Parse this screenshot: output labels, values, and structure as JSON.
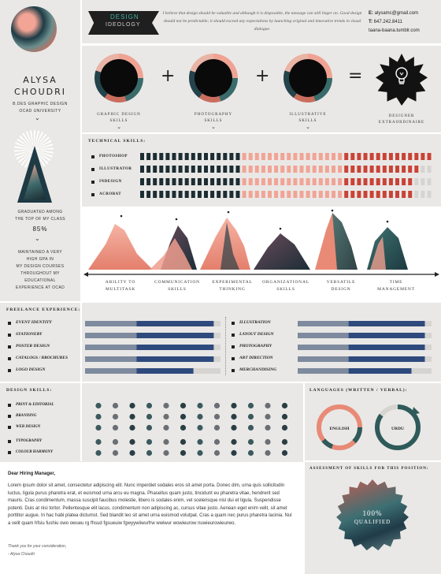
{
  "profile": {
    "first_name": "ALYSA",
    "last_name": "CHOUDRI",
    "degree_line1": "B.DES GRAPHIC DESIGN",
    "degree_line2": "OCAD UNIVERSITY",
    "graduated_line1": "GRADUATED AMONG",
    "graduated_line2": "THE TOP OF MY CLASS",
    "percent": "85%",
    "gpa_lines": [
      "MAINTAINED A VERY",
      "HIGH GPA IN",
      "MY DESIGN COURSES",
      "THROUGHOUT MY",
      "EDUCATIONAL",
      "EXPERIENCE AT OCAD"
    ]
  },
  "header": {
    "banner_line1": "DESIGN",
    "banner_line2": "IDEOLOGY",
    "quote": "I believe that design should be valuable and although it is disposable, the message can still linger on. Good design should not be predictable; it should exceed any expectations by launching original and innovative trends in visual dialogue.",
    "email_label": "E:",
    "email": "alysamc@gmail.com",
    "phone_label": "T:",
    "phone": "647.242.8411",
    "website": "taana-baana.tumblr.com"
  },
  "equation": {
    "items": [
      {
        "label1": "GRAPHIC DESIGN",
        "label2": "SKILLS"
      },
      {
        "label1": "PHOTOGRAPHY",
        "label2": "SKILLS"
      },
      {
        "label1": "ILLUSTRATIVE",
        "label2": "SKILLS"
      },
      {
        "label1": "DESIGNER",
        "label2": "EXTRAORDINAIRE"
      }
    ],
    "plus": "+",
    "equals": "="
  },
  "technical": {
    "title": "TECHNICAL SKILLS:",
    "skills": [
      {
        "name": "PHOTOSHOP",
        "level": 1.0
      },
      {
        "name": "ILLUSTRATOR",
        "level": 0.95
      },
      {
        "name": "INDESIGN",
        "level": 0.93
      },
      {
        "name": "ACROBAT",
        "level": 0.93
      }
    ],
    "colors": {
      "dark": "#1c2d33",
      "light": "#f1a495",
      "red": "#c94336",
      "empty": "#d6d4d1"
    }
  },
  "personal_skills": {
    "labels": [
      {
        "l1": "ABILITY TO",
        "l2": "MULTITASK"
      },
      {
        "l1": "COMMUNICATION",
        "l2": "SKILLS"
      },
      {
        "l1": "EXPERIMENTAL",
        "l2": "THINKING"
      },
      {
        "l1": "ORGANIZATIONAL",
        "l2": "SKILLS"
      },
      {
        "l1": "VERSATILE",
        "l2": "DESIGN"
      },
      {
        "l1": "TIME",
        "l2": "MANAGEMENT"
      }
    ]
  },
  "freelance": {
    "title": "FREELANCE EXPERIENCE:",
    "left": [
      {
        "name": "EVENT IDENTITY",
        "level": 0.95
      },
      {
        "name": "STATIONERY",
        "level": 0.95
      },
      {
        "name": "POSTER DESIGN",
        "level": 0.95
      },
      {
        "name": "CATALOGS / BROCHURES",
        "level": 0.95
      },
      {
        "name": "LOGO DESIGN",
        "level": 0.8
      }
    ],
    "right": [
      {
        "name": "ILLUSTRATION",
        "level": 0.95
      },
      {
        "name": "LAYOUT DESIGN",
        "level": 0.95
      },
      {
        "name": "PHOTOGRAPHY",
        "level": 0.95
      },
      {
        "name": "ART DIRECTION",
        "level": 0.95
      },
      {
        "name": "MERCHANDISING",
        "level": 0.85
      }
    ],
    "colors": {
      "texture": "#7e8a9e",
      "blue": "#2e4a7d",
      "empty": "#d6d4d1"
    }
  },
  "design_skills": {
    "title": "DESIGN SKILLS:",
    "skills": [
      {
        "name": "PRINT & EDITORIAL",
        "dots": 12
      },
      {
        "name": "BRANDING",
        "dots": 12
      },
      {
        "name": "WEB DESIGN",
        "dots": 12
      },
      {
        "name": "TYPOGRAPHY",
        "dots": 12
      },
      {
        "name": "COLOUR HARMONY",
        "dots": 12
      }
    ]
  },
  "languages": {
    "title": "LANGUAGES (WRITTEN / VERBAL):",
    "items": [
      {
        "name": "ENGLISH",
        "level": 1.0
      },
      {
        "name": "URDU",
        "level": 0.85
      }
    ]
  },
  "letter": {
    "salutation": "Dear Hiring Manager,",
    "body": "Lorem ipsum dolor sit amet, consectetur adipiscing elit. Nunc imperdiet sodales eros sit amet porta. Donec dim, urna quis sollicitudin luctus, ligula purus pharetra erat, et euismod urna arcu eu magna. Phasellus quam justo, tincidunt eu pharetra vitae, hendrerit sed mauris. Cras condimentum, massa suscipit faucibus molestie, libero is sodales enim, vel scelerisque nisl dui et ligula. Suspendisse potenti. Duis at nisi tortor. Pellentesque elit lacus, condimentum non adipiscing ac, cursus vitae justo. Aenean eget enim velit, sit amet porttitor augue. In hac habi platea dictumst. Sed blandit leo sit amet urna euismod volutpat. Cras a quam nec purus pharetra lacinia. Nul a velit quam hfsiu fushiu owo owueu rg fhsud fgsueuiw fgwyywiiwurfrw wwiwur wowieurow nuwieurowieurwo.",
    "thanks": "Thank you for your consideration,",
    "signature": "- Alysa Choudri"
  },
  "assessment": {
    "title": "ASSESSMENT OF SKILLS FOR THIS POSITION:",
    "percent": "100%",
    "label": "QUALIFIED"
  }
}
